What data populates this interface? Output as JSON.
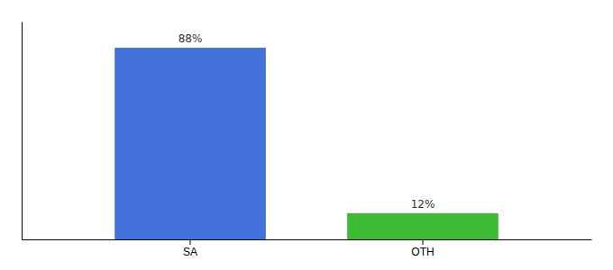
{
  "chart_data": {
    "type": "bar",
    "categories": [
      "SA",
      "OTH"
    ],
    "values": [
      88,
      12
    ],
    "value_labels": [
      "88%",
      "12%"
    ],
    "colors": [
      "#4472db",
      "#3dbb35"
    ],
    "ylim": [
      0,
      100
    ],
    "data_labels": true,
    "tick_labels": "x",
    "grid": false
  }
}
